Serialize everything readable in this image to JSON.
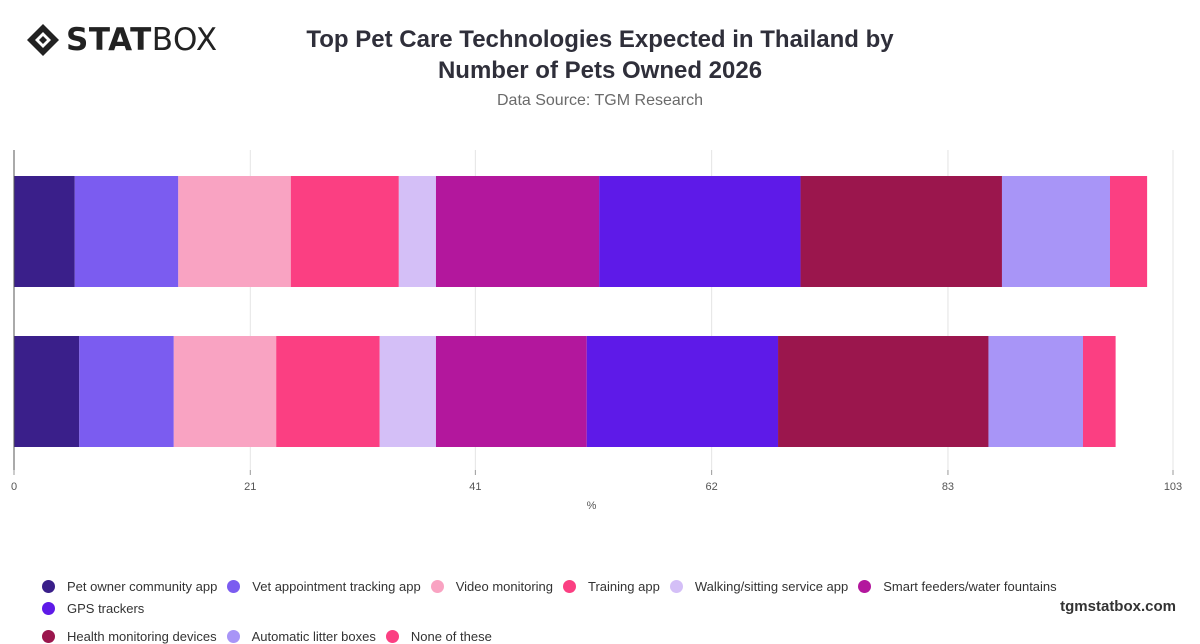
{
  "header": {
    "logo_text_bold": "STAT",
    "logo_text_light": "BOX",
    "title_line1": "Top Pet Care Technologies Expected in Thailand by",
    "title_line2": "Number of Pets Owned 2026",
    "subtitle": "Data Source: TGM Research"
  },
  "footer": {
    "brand": "tgmstatbox.com"
  },
  "chart_data": {
    "type": "bar",
    "orientation": "horizontal",
    "stacked": true,
    "title": "Top Pet Care Technologies Expected in Thailand by Number of Pets Owned 2026",
    "xlabel": "%",
    "xlim": [
      0,
      103
    ],
    "x_ticks": [
      "0",
      "21",
      "41",
      "62",
      "83",
      "103"
    ],
    "grid": true,
    "legend_position": "bottom",
    "categories": [
      "",
      ""
    ],
    "series": [
      {
        "name": "Pet owner community app",
        "color": "#3a1f8a",
        "values": [
          5.4,
          5.8
        ]
      },
      {
        "name": "Vet appointment tracking app",
        "color": "#7b5cf0",
        "values": [
          9.2,
          8.4
        ]
      },
      {
        "name": "Video monitoring",
        "color": "#f9a3c2",
        "values": [
          10.0,
          9.1
        ]
      },
      {
        "name": "Training app",
        "color": "#fb3f82",
        "values": [
          9.6,
          9.2
        ]
      },
      {
        "name": "Walking/sitting service app",
        "color": "#d4bff7",
        "values": [
          3.3,
          5.0
        ]
      },
      {
        "name": "Smart feeders/water fountains",
        "color": "#b3179d",
        "values": [
          14.5,
          13.4
        ]
      },
      {
        "name": "GPS trackers",
        "color": "#5e1ae8",
        "values": [
          17.9,
          17.0
        ]
      },
      {
        "name": "Health monitoring devices",
        "color": "#9b164d",
        "values": [
          17.9,
          18.7
        ]
      },
      {
        "name": "Automatic litter boxes",
        "color": "#a895f7",
        "values": [
          9.6,
          8.4
        ]
      },
      {
        "name": "None of these",
        "color": "#fb3f82",
        "values": [
          3.3,
          2.9
        ]
      }
    ]
  }
}
